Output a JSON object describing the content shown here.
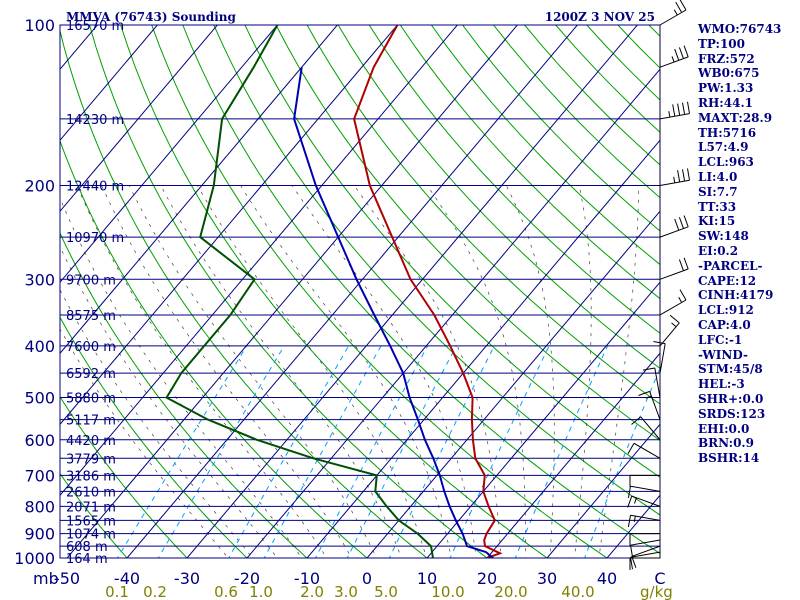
{
  "header": {
    "station": "MMVA (76743) Sounding",
    "valid_time": "1200Z  3 NOV 25"
  },
  "indices": [
    "WMO:76743",
    "TP:100",
    "FRZ:572",
    "WB0:675",
    "PW:1.33",
    "RH:44.1",
    "MAXT:28.9",
    "TH:5716",
    "L57:4.9",
    "LCL:963",
    "LI:4.0",
    "SI:7.7",
    "TT:33",
    "KI:15",
    "SW:148",
    "EI:0.2",
    "-PARCEL-",
    "CAPE:12",
    "CINH:4179",
    "LCL:912",
    "CAP:4.0",
    "LFC:-1",
    "-WIND-",
    "STM:45/8",
    "HEL:-3",
    "SHR+:0.0",
    "SRDS:123",
    "EHI:0.0",
    "BRN:0.9",
    "BSHR:14"
  ],
  "colors": {
    "frame": "#000080",
    "isobar": "#000080",
    "isotherm": "#000080",
    "dry_adiabat": "#00a000",
    "moist_adiabat": "#404040",
    "mixing_ratio": "#00a0ff",
    "temperature": "#b00000",
    "dewpoint": "#005000",
    "parcel": "#0000b0",
    "wind": "#000000"
  },
  "chart_data": {
    "type": "line",
    "title": "MMVA (76743) Sounding",
    "subtitle": "1200Z  3 NOV 25",
    "xlabel": "C",
    "ylabel": "mb",
    "mixing_ratio_unit": "g/kg",
    "xlim": [
      -50,
      50
    ],
    "ylim_mb": [
      1000,
      100
    ],
    "pressure_ticks": [
      100,
      200,
      300,
      400,
      500,
      600,
      700,
      800,
      900,
      1000
    ],
    "temperature_ticks": [
      "-50",
      "-40",
      "-30",
      "-20",
      "-10",
      "0",
      "10",
      "20",
      "30",
      "40"
    ],
    "mixing_ratio_ticks": [
      "0.1",
      "0.2",
      "0.6",
      "1.0",
      "2.0",
      "3.0",
      "5.0",
      "10.0",
      "20.0",
      "40.0"
    ],
    "height_labels": [
      {
        "p": 100,
        "label": "16570 m"
      },
      {
        "p": 150,
        "label": "14230 m"
      },
      {
        "p": 200,
        "label": "12440 m"
      },
      {
        "p": 250,
        "label": "10970 m"
      },
      {
        "p": 300,
        "label": "9700 m"
      },
      {
        "p": 350,
        "label": "8575 m"
      },
      {
        "p": 400,
        "label": "7600 m"
      },
      {
        "p": 450,
        "label": "6592 m"
      },
      {
        "p": 500,
        "label": "5880 m"
      },
      {
        "p": 550,
        "label": "5117 m"
      },
      {
        "p": 600,
        "label": "4420 m"
      },
      {
        "p": 650,
        "label": "3779 m"
      },
      {
        "p": 700,
        "label": "3186 m"
      },
      {
        "p": 750,
        "label": "2610 m"
      },
      {
        "p": 800,
        "label": "2071 m"
      },
      {
        "p": 850,
        "label": "1565 m"
      },
      {
        "p": 900,
        "label": "1074 m"
      },
      {
        "p": 950,
        "label": "608 m"
      },
      {
        "p": 1000,
        "label": "164 m"
      }
    ],
    "series": [
      {
        "name": "Temperature",
        "points": [
          [
            1000,
            20
          ],
          [
            980,
            21.5
          ],
          [
            950,
            18
          ],
          [
            925,
            17
          ],
          [
            900,
            16.5
          ],
          [
            850,
            16
          ],
          [
            800,
            13
          ],
          [
            750,
            10
          ],
          [
            700,
            8
          ],
          [
            650,
            4
          ],
          [
            600,
            1
          ],
          [
            550,
            -2
          ],
          [
            500,
            -5
          ],
          [
            450,
            -10
          ],
          [
            400,
            -16
          ],
          [
            350,
            -23
          ],
          [
            300,
            -32
          ],
          [
            250,
            -41
          ],
          [
            200,
            -52
          ],
          [
            150,
            -64
          ],
          [
            120,
            -68
          ],
          [
            100,
            -70
          ]
        ]
      },
      {
        "name": "Dewpoint",
        "points": [
          [
            1000,
            11
          ],
          [
            950,
            9
          ],
          [
            900,
            5
          ],
          [
            850,
            0
          ],
          [
            800,
            -4
          ],
          [
            750,
            -8
          ],
          [
            700,
            -10
          ],
          [
            650,
            -23
          ],
          [
            600,
            -35
          ],
          [
            550,
            -46
          ],
          [
            500,
            -56
          ],
          [
            450,
            -57
          ],
          [
            400,
            -57
          ],
          [
            350,
            -57
          ],
          [
            300,
            -58
          ],
          [
            250,
            -73
          ],
          [
            200,
            -78
          ],
          [
            150,
            -86
          ],
          [
            120,
            -88
          ],
          [
            100,
            -90
          ]
        ]
      },
      {
        "name": "Parcel",
        "points": [
          [
            1000,
            21
          ],
          [
            975,
            19
          ],
          [
            950,
            15
          ],
          [
            900,
            12.5
          ],
          [
            850,
            9.5
          ],
          [
            800,
            6.5
          ],
          [
            750,
            3.5
          ],
          [
            700,
            0.5
          ],
          [
            650,
            -3
          ],
          [
            600,
            -7
          ],
          [
            550,
            -11
          ],
          [
            500,
            -15.5
          ],
          [
            450,
            -20
          ],
          [
            400,
            -26
          ],
          [
            350,
            -33
          ],
          [
            300,
            -41
          ],
          [
            250,
            -50
          ],
          [
            200,
            -61
          ],
          [
            150,
            -74
          ],
          [
            120,
            -80
          ]
        ]
      }
    ],
    "wind_barbs": [
      {
        "p": 1000,
        "dir": 90,
        "kt": 10
      },
      {
        "p": 975,
        "dir": 100,
        "kt": 10
      },
      {
        "p": 950,
        "dir": 110,
        "kt": 10
      },
      {
        "p": 925,
        "dir": 100,
        "kt": 10
      },
      {
        "p": 900,
        "dir": 90,
        "kt": 10
      },
      {
        "p": 850,
        "dir": 80,
        "kt": 15
      },
      {
        "p": 800,
        "dir": 70,
        "kt": 15
      },
      {
        "p": 750,
        "dir": 80,
        "kt": 10
      },
      {
        "p": 700,
        "dir": 90,
        "kt": 10
      },
      {
        "p": 650,
        "dir": 60,
        "kt": 10
      },
      {
        "p": 600,
        "dir": 40,
        "kt": 10
      },
      {
        "p": 550,
        "dir": 20,
        "kt": 15
      },
      {
        "p": 500,
        "dir": 10,
        "kt": 10
      },
      {
        "p": 450,
        "dir": 350,
        "kt": 10
      },
      {
        "p": 400,
        "dir": 320,
        "kt": 15
      },
      {
        "p": 350,
        "dir": 300,
        "kt": 15
      },
      {
        "p": 300,
        "dir": 290,
        "kt": 20
      },
      {
        "p": 250,
        "dir": 290,
        "kt": 30
      },
      {
        "p": 200,
        "dir": 280,
        "kt": 35
      },
      {
        "p": 150,
        "dir": 280,
        "kt": 45
      },
      {
        "p": 120,
        "dir": 290,
        "kt": 35
      },
      {
        "p": 100,
        "dir": 300,
        "kt": 25
      }
    ]
  }
}
